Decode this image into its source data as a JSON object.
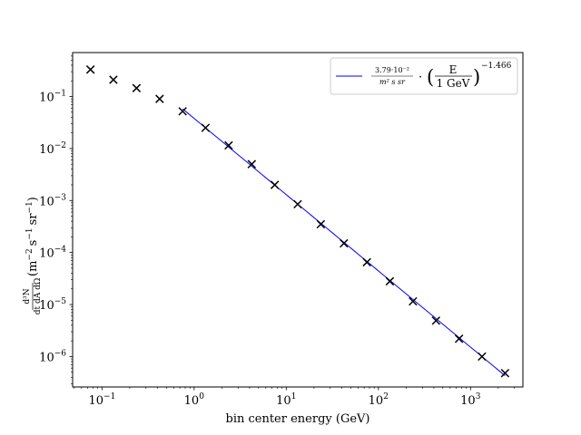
{
  "chart_data": {
    "type": "scatter",
    "xlabel": "bin center energy (GeV)",
    "ylabel": {
      "frac_num": "d³N",
      "frac_den": "dt dA dΩ",
      "paren_open": "(",
      "m_unit": "m",
      "m_exp": "−2",
      "s_unit": "s",
      "s_exp": "−1",
      "sr_unit": "sr",
      "sr_exp": "−1",
      "paren_close": ")"
    },
    "x_scale": "log",
    "y_scale": "log",
    "xlim": [
      0.048,
      3700
    ],
    "ylim": [
      2.6e-07,
      0.7
    ],
    "x_ticks": [
      {
        "value": 0.1,
        "base": "10",
        "exp": "−1"
      },
      {
        "value": 1,
        "base": "10",
        "exp": "0"
      },
      {
        "value": 10,
        "base": "10",
        "exp": "1"
      },
      {
        "value": 100,
        "base": "10",
        "exp": "2"
      },
      {
        "value": 1000,
        "base": "10",
        "exp": "3"
      }
    ],
    "y_ticks": [
      {
        "value": 0.1,
        "base": "10",
        "exp": "−1"
      },
      {
        "value": 0.01,
        "base": "10",
        "exp": "−2"
      },
      {
        "value": 0.001,
        "base": "10",
        "exp": "−3"
      },
      {
        "value": 0.0001,
        "base": "10",
        "exp": "−4"
      },
      {
        "value": 1e-05,
        "base": "10",
        "exp": "−5"
      },
      {
        "value": 1e-06,
        "base": "10",
        "exp": "−6"
      }
    ],
    "series": [
      {
        "marker": "x",
        "color": "#000000",
        "x": [
          0.075,
          0.133,
          0.237,
          0.422,
          0.75,
          1.33,
          2.37,
          4.22,
          7.5,
          13.3,
          23.7,
          42.2,
          75,
          133,
          237,
          422,
          750,
          1330,
          2370
        ],
        "y": [
          0.33,
          0.21,
          0.145,
          0.09,
          0.052,
          0.025,
          0.0115,
          0.005,
          0.002,
          0.00085,
          0.00035,
          0.00015,
          6.5e-05,
          2.8e-05,
          1.15e-05,
          4.9e-06,
          2.2e-06,
          1e-06,
          4.8e-07
        ]
      },
      {
        "type": "line",
        "color": "#0000ff",
        "amplitude": 0.0379,
        "index": -1.466,
        "x_range": [
          0.75,
          2370
        ]
      }
    ],
    "legend": {
      "placement": "upper right",
      "coef_num": "3.79·10⁻²",
      "coef_den": "m² s sr",
      "dot": "·",
      "frac_num": "E",
      "frac_den": "1 GeV",
      "exponent": "−1.466"
    },
    "grid": false
  }
}
